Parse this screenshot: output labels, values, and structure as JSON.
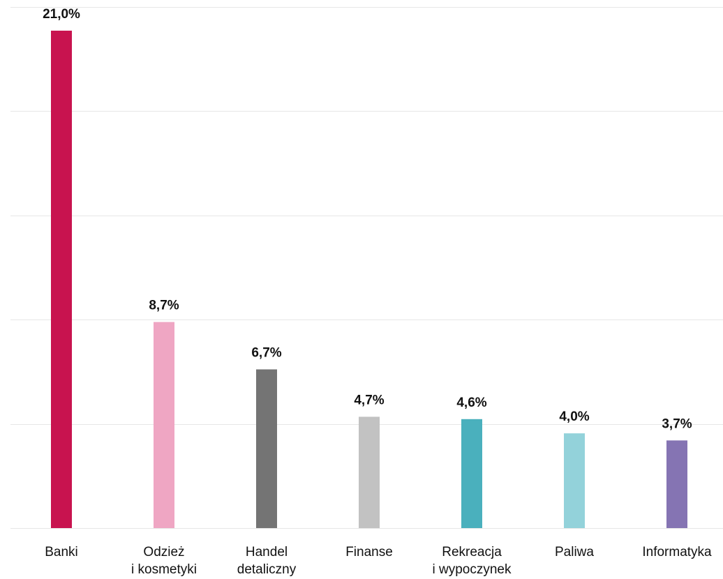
{
  "chart_data": {
    "type": "bar",
    "title": "",
    "xlabel": "",
    "ylabel": "",
    "ylim": [
      0,
      22
    ],
    "grid": true,
    "categories": [
      [
        "Banki"
      ],
      [
        "Odzież",
        "i kosmetyki"
      ],
      [
        "Handel",
        "detaliczny"
      ],
      [
        "Finanse"
      ],
      [
        "Rekreacja",
        "i wypoczynek"
      ],
      [
        "Paliwa"
      ],
      [
        "Informatyka"
      ]
    ],
    "values": [
      21.0,
      8.7,
      6.7,
      4.7,
      4.6,
      4.0,
      3.7
    ],
    "value_labels": [
      "21,0%",
      "8,7%",
      "6,7%",
      "4,7%",
      "4,6%",
      "4,0%",
      "3,7%"
    ],
    "colors": [
      "#c8134f",
      "#efa6c3",
      "#747474",
      "#c2c2c2",
      "#4ab0bd",
      "#93d2da",
      "#8574b3"
    ]
  }
}
